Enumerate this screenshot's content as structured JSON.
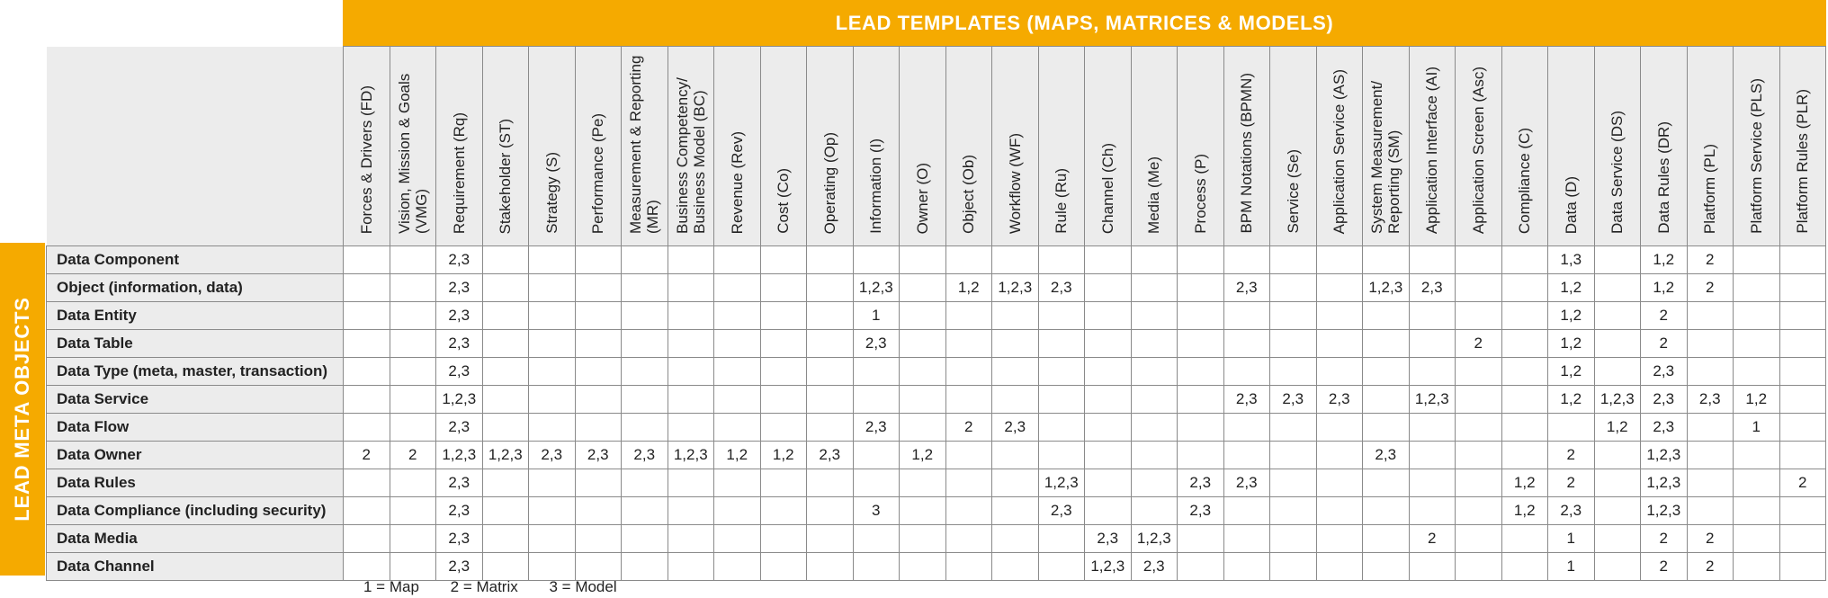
{
  "title": "LEAD TEMPLATES (MAPS, MATRICES & MODELS)",
  "side_title": "LEAD META OBJECTS",
  "columns": [
    "Forces & Drivers (FD)",
    "Vision, Mission & Goals (VMG)",
    "Requirement (Rq)",
    "Stakeholder (ST)",
    "Strategy (S)",
    "Performance (Pe)",
    "Measurement & Reporting (MR)",
    "Business Competency/ Business Model (BC)",
    "Revenue (Rev)",
    "Cost (Co)",
    "Operating (Op)",
    "Information (I)",
    "Owner (O)",
    "Object (Ob)",
    "Workflow (WF)",
    "Rule (Ru)",
    "Channel (Ch)",
    "Media (Me)",
    "Process (P)",
    "BPM Notations (BPMN)",
    "Service (Se)",
    "Application Service (AS)",
    "System Measurement/ Reporting (SM)",
    "Application Interface (AI)",
    "Application Screen (Asc)",
    "Compliance (C)",
    "Data (D)",
    "Data Service (DS)",
    "Data Rules (DR)",
    "Platform (PL)",
    "Platform Service (PLS)",
    "Platform Rules (PLR)"
  ],
  "rows": [
    {
      "label": "Data Component",
      "cells": [
        "",
        "",
        "2,3",
        "",
        "",
        "",
        "",
        "",
        "",
        "",
        "",
        "",
        "",
        "",
        "",
        "",
        "",
        "",
        "",
        "",
        "",
        "",
        "",
        "",
        "",
        "",
        "1,3",
        "",
        "1,2",
        "2",
        "",
        ""
      ]
    },
    {
      "label": "Object (information, data)",
      "cells": [
        "",
        "",
        "2,3",
        "",
        "",
        "",
        "",
        "",
        "",
        "",
        "",
        "1,2,3",
        "",
        "1,2",
        "1,2,3",
        "2,3",
        "",
        "",
        "",
        "2,3",
        "",
        "",
        "1,2,3",
        "2,3",
        "",
        "",
        "1,2",
        "",
        "1,2",
        "2",
        "",
        ""
      ]
    },
    {
      "label": "Data Entity",
      "cells": [
        "",
        "",
        "2,3",
        "",
        "",
        "",
        "",
        "",
        "",
        "",
        "",
        "1",
        "",
        "",
        "",
        "",
        "",
        "",
        "",
        "",
        "",
        "",
        "",
        "",
        "",
        "",
        "1,2",
        "",
        "2",
        "",
        "",
        ""
      ]
    },
    {
      "label": "Data Table",
      "cells": [
        "",
        "",
        "2,3",
        "",
        "",
        "",
        "",
        "",
        "",
        "",
        "",
        "2,3",
        "",
        "",
        "",
        "",
        "",
        "",
        "",
        "",
        "",
        "",
        "",
        "",
        "2",
        "",
        "1,2",
        "",
        "2",
        "",
        "",
        ""
      ]
    },
    {
      "label": "Data Type (meta, master, transaction)",
      "cells": [
        "",
        "",
        "2,3",
        "",
        "",
        "",
        "",
        "",
        "",
        "",
        "",
        "",
        "",
        "",
        "",
        "",
        "",
        "",
        "",
        "",
        "",
        "",
        "",
        "",
        "",
        "",
        "1,2",
        "",
        "2,3",
        "",
        "",
        ""
      ]
    },
    {
      "label": "Data Service",
      "cells": [
        "",
        "",
        "1,2,3",
        "",
        "",
        "",
        "",
        "",
        "",
        "",
        "",
        "",
        "",
        "",
        "",
        "",
        "",
        "",
        "",
        "2,3",
        "2,3",
        "2,3",
        "",
        "1,2,3",
        "",
        "",
        "1,2",
        "1,2,3",
        "2,3",
        "2,3",
        "1,2",
        ""
      ]
    },
    {
      "label": "Data Flow",
      "cells": [
        "",
        "",
        "2,3",
        "",
        "",
        "",
        "",
        "",
        "",
        "",
        "",
        "2,3",
        "",
        "2",
        "2,3",
        "",
        "",
        "",
        "",
        "",
        "",
        "",
        "",
        "",
        "",
        "",
        "",
        "1,2",
        "2,3",
        "",
        "1",
        ""
      ]
    },
    {
      "label": "Data Owner",
      "cells": [
        "2",
        "2",
        "1,2,3",
        "1,2,3",
        "2,3",
        "2,3",
        "2,3",
        "1,2,3",
        "1,2",
        "1,2",
        "2,3",
        "",
        "1,2",
        "",
        "",
        "",
        "",
        "",
        "",
        "",
        "",
        "",
        "2,3",
        "",
        "",
        "",
        "2",
        "",
        "1,2,3",
        "",
        "",
        ""
      ]
    },
    {
      "label": "Data Rules",
      "cells": [
        "",
        "",
        "2,3",
        "",
        "",
        "",
        "",
        "",
        "",
        "",
        "",
        "",
        "",
        "",
        "",
        "1,2,3",
        "",
        "",
        "2,3",
        "2,3",
        "",
        "",
        "",
        "",
        "",
        "1,2",
        "2",
        "",
        "1,2,3",
        "",
        "",
        "2"
      ]
    },
    {
      "label": "Data Compliance (including security)",
      "cells": [
        "",
        "",
        "2,3",
        "",
        "",
        "",
        "",
        "",
        "",
        "",
        "",
        "3",
        "",
        "",
        "",
        "2,3",
        "",
        "",
        "2,3",
        "",
        "",
        "",
        "",
        "",
        "",
        "1,2",
        "2,3",
        "",
        "1,2,3",
        "",
        "",
        ""
      ]
    },
    {
      "label": "Data Media",
      "cells": [
        "",
        "",
        "2,3",
        "",
        "",
        "",
        "",
        "",
        "",
        "",
        "",
        "",
        "",
        "",
        "",
        "",
        "2,3",
        "1,2,3",
        "",
        "",
        "",
        "",
        "",
        "2",
        "",
        "",
        "1",
        "",
        "2",
        "2",
        "",
        ""
      ]
    },
    {
      "label": "Data Channel",
      "cells": [
        "",
        "",
        "2,3",
        "",
        "",
        "",
        "",
        "",
        "",
        "",
        "",
        "",
        "",
        "",
        "",
        "",
        "1,2,3",
        "2,3",
        "",
        "",
        "",
        "",
        "",
        "",
        "",
        "",
        "1",
        "",
        "2",
        "2",
        "",
        ""
      ]
    }
  ],
  "legend": {
    "map": "1 = Map",
    "matrix": "2 = Matrix",
    "model": "3 = Model"
  },
  "colors": {
    "accent": "#f5aa00",
    "header_bg": "#ececec",
    "grid_line": "#8a8a8a"
  }
}
